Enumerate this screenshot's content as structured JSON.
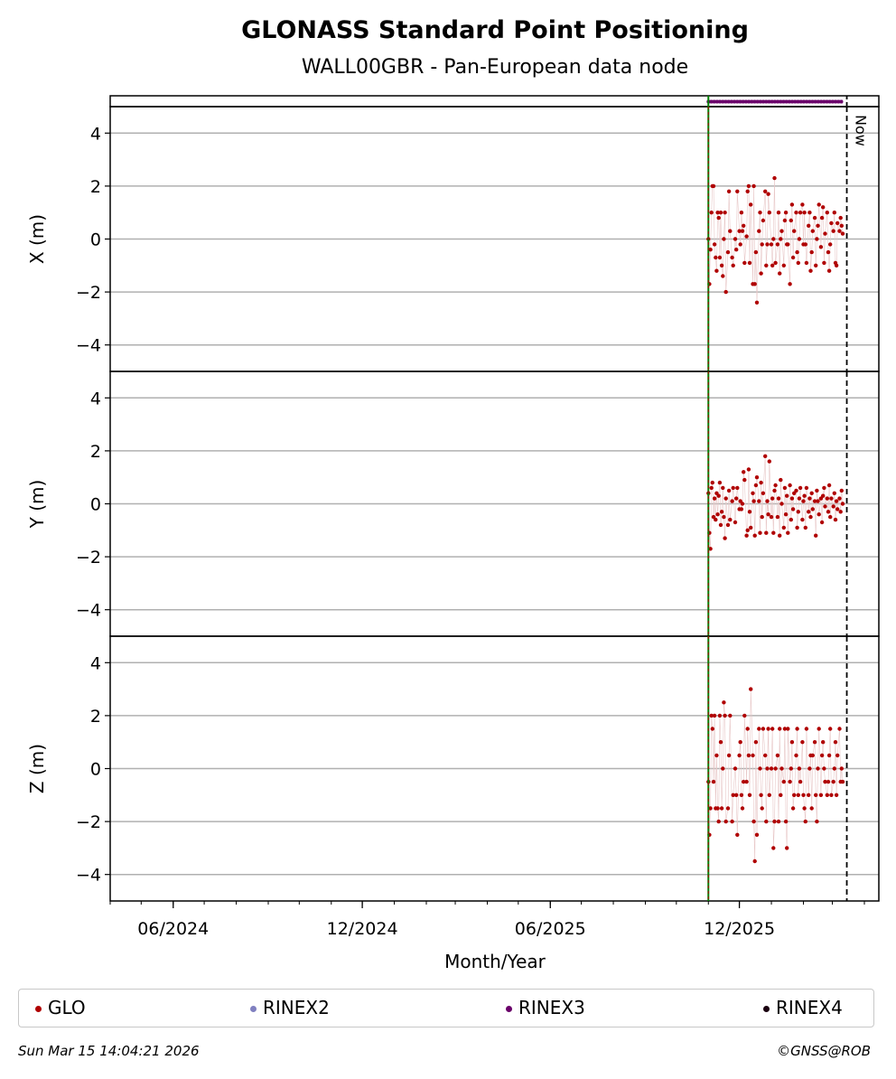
{
  "chart_data": {
    "type": "scatter",
    "title": "GLONASS Standard Point Positioning",
    "subtitle": "WALL00GBR - Pan-European data node",
    "xlabel": "Month/Year",
    "x_tick_labels": [
      "06/2024",
      "12/2024",
      "06/2025",
      "12/2025"
    ],
    "now_label": "Now",
    "now_date": "2026-03-15",
    "ylim": [
      -5,
      5
    ],
    "yticks": [
      -4,
      -2,
      0,
      2,
      4
    ],
    "rinex_bar": {
      "start": "2025-11-01",
      "end": "2026-03-11",
      "format": "RINEX3"
    },
    "colors": {
      "GLO": "#b00000",
      "RINEX2": "#8080c0",
      "RINEX3": "#6a006a",
      "RINEX4": "#1a0010",
      "start_line": "#008000"
    },
    "start_date": "2025-11-01",
    "panels": [
      {
        "ylabel": "X (m)",
        "series_name": "GLO",
        "x": [
          "2025-11-01",
          "2025-11-02",
          "2025-11-03",
          "2025-11-04",
          "2025-11-05",
          "2025-11-06",
          "2025-11-07",
          "2025-11-08",
          "2025-11-09",
          "2025-11-10",
          "2025-11-11",
          "2025-11-12",
          "2025-11-13",
          "2025-11-14",
          "2025-11-15",
          "2025-11-16",
          "2025-11-17",
          "2025-11-18",
          "2025-11-20",
          "2025-11-21",
          "2025-11-22",
          "2025-11-24",
          "2025-11-25",
          "2025-11-27",
          "2025-11-28",
          "2025-11-29",
          "2025-12-01",
          "2025-12-02",
          "2025-12-03",
          "2025-12-04",
          "2025-12-05",
          "2025-12-06",
          "2025-12-08",
          "2025-12-09",
          "2025-12-10",
          "2025-12-11",
          "2025-12-12",
          "2025-12-14",
          "2025-12-15",
          "2025-12-16",
          "2025-12-17",
          "2025-12-18",
          "2025-12-20",
          "2025-12-21",
          "2025-12-22",
          "2025-12-23",
          "2025-12-24",
          "2025-12-26",
          "2025-12-27",
          "2025-12-28",
          "2025-12-29",
          "2025-12-30",
          "2026-01-01",
          "2026-01-02",
          "2026-01-03",
          "2026-01-04",
          "2026-01-05",
          "2026-01-07",
          "2026-01-08",
          "2026-01-09",
          "2026-01-10",
          "2026-01-11",
          "2026-01-13",
          "2026-01-14",
          "2026-01-15",
          "2026-01-16",
          "2026-01-17",
          "2026-01-19",
          "2026-01-20",
          "2026-01-21",
          "2026-01-22",
          "2026-01-23",
          "2026-01-25",
          "2026-01-26",
          "2026-01-27",
          "2026-01-28",
          "2026-01-29",
          "2026-01-31",
          "2026-02-01",
          "2026-02-02",
          "2026-02-03",
          "2026-02-04",
          "2026-02-06",
          "2026-02-07",
          "2026-02-08",
          "2026-02-09",
          "2026-02-10",
          "2026-02-12",
          "2026-02-13",
          "2026-02-14",
          "2026-02-15",
          "2026-02-16",
          "2026-02-18",
          "2026-02-19",
          "2026-02-20",
          "2026-02-21",
          "2026-02-22",
          "2026-02-24",
          "2026-02-25",
          "2026-02-26",
          "2026-02-27",
          "2026-02-28",
          "2026-03-02",
          "2026-03-03",
          "2026-03-04",
          "2026-03-05",
          "2026-03-06",
          "2026-03-08",
          "2026-03-09",
          "2026-03-10",
          "2026-03-11"
        ],
        "y": [
          0.0,
          -1.7,
          -0.4,
          1.0,
          2.0,
          2.0,
          -0.2,
          -0.7,
          -1.2,
          1.0,
          0.8,
          -0.7,
          1.0,
          -1.0,
          -1.4,
          0.0,
          1.0,
          -2.0,
          -0.5,
          1.8,
          0.3,
          -0.7,
          -1.0,
          0.0,
          -0.4,
          1.8,
          0.3,
          -0.2,
          1.0,
          0.3,
          0.5,
          -0.9,
          0.1,
          1.8,
          2.0,
          -0.9,
          1.3,
          -1.7,
          2.0,
          -1.7,
          -0.5,
          -2.4,
          0.3,
          1.0,
          -1.3,
          -0.2,
          0.7,
          1.8,
          -1.0,
          -0.2,
          1.7,
          1.0,
          -0.2,
          -1.0,
          0.0,
          2.3,
          -0.9,
          -0.2,
          1.0,
          -1.3,
          0.0,
          0.3,
          -1.0,
          0.7,
          1.0,
          -0.2,
          -0.2,
          -1.7,
          0.7,
          1.3,
          -0.7,
          0.3,
          1.0,
          -0.5,
          -0.9,
          0.0,
          1.0,
          1.3,
          -0.2,
          1.0,
          -0.2,
          -0.9,
          0.5,
          1.0,
          -1.2,
          -0.5,
          0.3,
          0.8,
          -1.0,
          0.0,
          0.5,
          1.3,
          -0.3,
          0.8,
          1.2,
          -0.9,
          0.2,
          1.0,
          -0.5,
          -1.2,
          -0.2,
          0.6,
          0.3,
          1.0,
          -0.9,
          -1.0,
          0.6,
          0.3,
          0.8,
          0.5,
          0.2
        ]
      },
      {
        "ylabel": "Y (m)",
        "series_name": "GLO",
        "x": [
          "2025-11-01",
          "2025-11-02",
          "2025-11-03",
          "2025-11-04",
          "2025-11-05",
          "2025-11-06",
          "2025-11-07",
          "2025-11-08",
          "2025-11-09",
          "2025-11-10",
          "2025-11-11",
          "2025-11-12",
          "2025-11-13",
          "2025-11-14",
          "2025-11-15",
          "2025-11-16",
          "2025-11-17",
          "2025-11-18",
          "2025-11-20",
          "2025-11-21",
          "2025-11-22",
          "2025-11-24",
          "2025-11-25",
          "2025-11-27",
          "2025-11-28",
          "2025-11-29",
          "2025-12-01",
          "2025-12-02",
          "2025-12-03",
          "2025-12-04",
          "2025-12-05",
          "2025-12-06",
          "2025-12-08",
          "2025-12-09",
          "2025-12-10",
          "2025-12-11",
          "2025-12-12",
          "2025-12-14",
          "2025-12-15",
          "2025-12-16",
          "2025-12-17",
          "2025-12-18",
          "2025-12-20",
          "2025-12-21",
          "2025-12-22",
          "2025-12-23",
          "2025-12-24",
          "2025-12-26",
          "2025-12-27",
          "2025-12-28",
          "2025-12-29",
          "2025-12-30",
          "2026-01-01",
          "2026-01-02",
          "2026-01-03",
          "2026-01-04",
          "2026-01-05",
          "2026-01-07",
          "2026-01-08",
          "2026-01-09",
          "2026-01-10",
          "2026-01-11",
          "2026-01-13",
          "2026-01-14",
          "2026-01-15",
          "2026-01-16",
          "2026-01-17",
          "2026-01-19",
          "2026-01-20",
          "2026-01-21",
          "2026-01-22",
          "2026-01-23",
          "2026-01-25",
          "2026-01-26",
          "2026-01-27",
          "2026-01-28",
          "2026-01-29",
          "2026-01-31",
          "2026-02-01",
          "2026-02-02",
          "2026-02-03",
          "2026-02-04",
          "2026-02-06",
          "2026-02-07",
          "2026-02-08",
          "2026-02-09",
          "2026-02-10",
          "2026-02-12",
          "2026-02-13",
          "2026-02-14",
          "2026-02-15",
          "2026-02-16",
          "2026-02-18",
          "2026-02-19",
          "2026-02-20",
          "2026-02-21",
          "2026-02-22",
          "2026-02-24",
          "2026-02-25",
          "2026-02-26",
          "2026-02-27",
          "2026-02-28",
          "2026-03-02",
          "2026-03-03",
          "2026-03-04",
          "2026-03-05",
          "2026-03-06",
          "2026-03-08",
          "2026-03-09",
          "2026-03-10",
          "2026-03-11"
        ],
        "y": [
          0.4,
          -1.1,
          -1.7,
          0.6,
          0.8,
          -0.5,
          0.2,
          -0.6,
          0.4,
          -0.4,
          0.3,
          0.8,
          -0.8,
          -0.3,
          0.6,
          -0.5,
          -1.3,
          0.2,
          -0.8,
          0.5,
          -0.6,
          0.1,
          0.6,
          -0.7,
          0.2,
          0.6,
          -0.2,
          0.1,
          -0.2,
          0.0,
          1.2,
          0.9,
          -1.2,
          -1.0,
          1.3,
          -0.3,
          -0.9,
          0.4,
          0.1,
          -1.2,
          0.7,
          1.0,
          0.1,
          -1.1,
          0.8,
          -0.5,
          0.4,
          1.8,
          -1.1,
          0.1,
          -0.4,
          1.6,
          -0.5,
          0.2,
          -1.1,
          0.5,
          0.7,
          -0.5,
          0.2,
          -1.2,
          0.9,
          0.0,
          -0.9,
          0.6,
          -0.4,
          0.3,
          -1.1,
          0.7,
          -0.6,
          0.2,
          -0.2,
          0.4,
          0.5,
          -0.9,
          -0.3,
          0.2,
          0.6,
          -0.6,
          0.1,
          0.3,
          -0.9,
          0.6,
          -0.3,
          0.2,
          -0.5,
          0.4,
          -0.2,
          0.1,
          -1.2,
          0.5,
          0.1,
          -0.4,
          0.2,
          -0.7,
          0.3,
          0.6,
          -0.1,
          0.2,
          -0.3,
          0.7,
          -0.5,
          0.2,
          -0.1,
          0.4,
          -0.6,
          0.1,
          -0.2,
          0.2,
          -0.3,
          0.5,
          0.0
        ]
      },
      {
        "ylabel": "Z (m)",
        "series_name": "GLO",
        "x": [
          "2025-11-01",
          "2025-11-02",
          "2025-11-03",
          "2025-11-04",
          "2025-11-05",
          "2025-11-06",
          "2025-11-07",
          "2025-11-08",
          "2025-11-09",
          "2025-11-10",
          "2025-11-11",
          "2025-11-12",
          "2025-11-13",
          "2025-11-14",
          "2025-11-15",
          "2025-11-16",
          "2025-11-17",
          "2025-11-18",
          "2025-11-20",
          "2025-11-21",
          "2025-11-22",
          "2025-11-24",
          "2025-11-25",
          "2025-11-27",
          "2025-11-28",
          "2025-11-29",
          "2025-12-01",
          "2025-12-02",
          "2025-12-03",
          "2025-12-04",
          "2025-12-05",
          "2025-12-06",
          "2025-12-08",
          "2025-12-09",
          "2025-12-10",
          "2025-12-11",
          "2025-12-12",
          "2025-12-14",
          "2025-12-15",
          "2025-12-16",
          "2025-12-17",
          "2025-12-18",
          "2025-12-20",
          "2025-12-21",
          "2025-12-22",
          "2025-12-23",
          "2025-12-24",
          "2025-12-26",
          "2025-12-27",
          "2025-12-28",
          "2025-12-29",
          "2025-12-30",
          "2026-01-01",
          "2026-01-02",
          "2026-01-03",
          "2026-01-04",
          "2026-01-05",
          "2026-01-07",
          "2026-01-08",
          "2026-01-09",
          "2026-01-10",
          "2026-01-11",
          "2026-01-13",
          "2026-01-14",
          "2026-01-15",
          "2026-01-16",
          "2026-01-17",
          "2026-01-19",
          "2026-01-20",
          "2026-01-21",
          "2026-01-22",
          "2026-01-23",
          "2026-01-25",
          "2026-01-26",
          "2026-01-27",
          "2026-01-28",
          "2026-01-29",
          "2026-01-31",
          "2026-02-01",
          "2026-02-02",
          "2026-02-03",
          "2026-02-04",
          "2026-02-06",
          "2026-02-07",
          "2026-02-08",
          "2026-02-09",
          "2026-02-10",
          "2026-02-12",
          "2026-02-13",
          "2026-02-14",
          "2026-02-15",
          "2026-02-16",
          "2026-02-18",
          "2026-02-19",
          "2026-02-20",
          "2026-02-21",
          "2026-02-22",
          "2026-02-24",
          "2026-02-25",
          "2026-02-26",
          "2026-02-27",
          "2026-02-28",
          "2026-03-02",
          "2026-03-03",
          "2026-03-04",
          "2026-03-05",
          "2026-03-06",
          "2026-03-08",
          "2026-03-09",
          "2026-03-10",
          "2026-03-11"
        ],
        "y": [
          -0.5,
          -2.5,
          -1.5,
          2.0,
          1.5,
          -0.5,
          2.0,
          -1.5,
          0.5,
          -1.5,
          -2.0,
          2.0,
          1.0,
          -1.5,
          0.0,
          2.5,
          2.0,
          -2.0,
          -1.5,
          0.5,
          2.0,
          -2.0,
          -1.0,
          0.0,
          -1.0,
          -2.5,
          0.5,
          1.0,
          -1.0,
          -1.5,
          -0.5,
          2.0,
          -0.5,
          1.5,
          0.5,
          -1.0,
          3.0,
          0.5,
          -2.0,
          -3.5,
          1.0,
          -2.5,
          1.5,
          0.0,
          -1.0,
          -1.5,
          1.5,
          0.5,
          -2.0,
          0.0,
          1.5,
          -1.0,
          0.0,
          1.5,
          -3.0,
          -2.0,
          0.0,
          0.5,
          -2.0,
          1.5,
          -1.0,
          0.0,
          -0.5,
          1.5,
          -2.0,
          -3.0,
          1.5,
          -0.5,
          0.0,
          1.0,
          -1.5,
          -1.0,
          0.5,
          1.5,
          -1.0,
          0.0,
          -0.5,
          1.0,
          -1.0,
          -1.5,
          -2.0,
          1.5,
          -1.0,
          0.0,
          0.5,
          -1.5,
          0.5,
          1.0,
          -1.0,
          -2.0,
          0.0,
          1.5,
          -1.0,
          0.5,
          1.0,
          0.0,
          -0.5,
          -1.0,
          -0.5,
          0.5,
          1.5,
          -1.0,
          -0.5,
          0.0,
          1.0,
          -1.0,
          0.5,
          1.5,
          -0.5,
          0.0,
          -0.5
        ]
      }
    ],
    "legend": {
      "placement": "bottom",
      "items": [
        {
          "label": "GLO",
          "color": "#b00000"
        },
        {
          "label": "RINEX2",
          "color": "#8080c0"
        },
        {
          "label": "RINEX3",
          "color": "#6a006a"
        },
        {
          "label": "RINEX4",
          "color": "#1a0010"
        }
      ]
    },
    "grid": true
  },
  "footer": {
    "timestamp": "Sun Mar 15 14:04:21 2026",
    "copyright": "©GNSS@ROB"
  }
}
